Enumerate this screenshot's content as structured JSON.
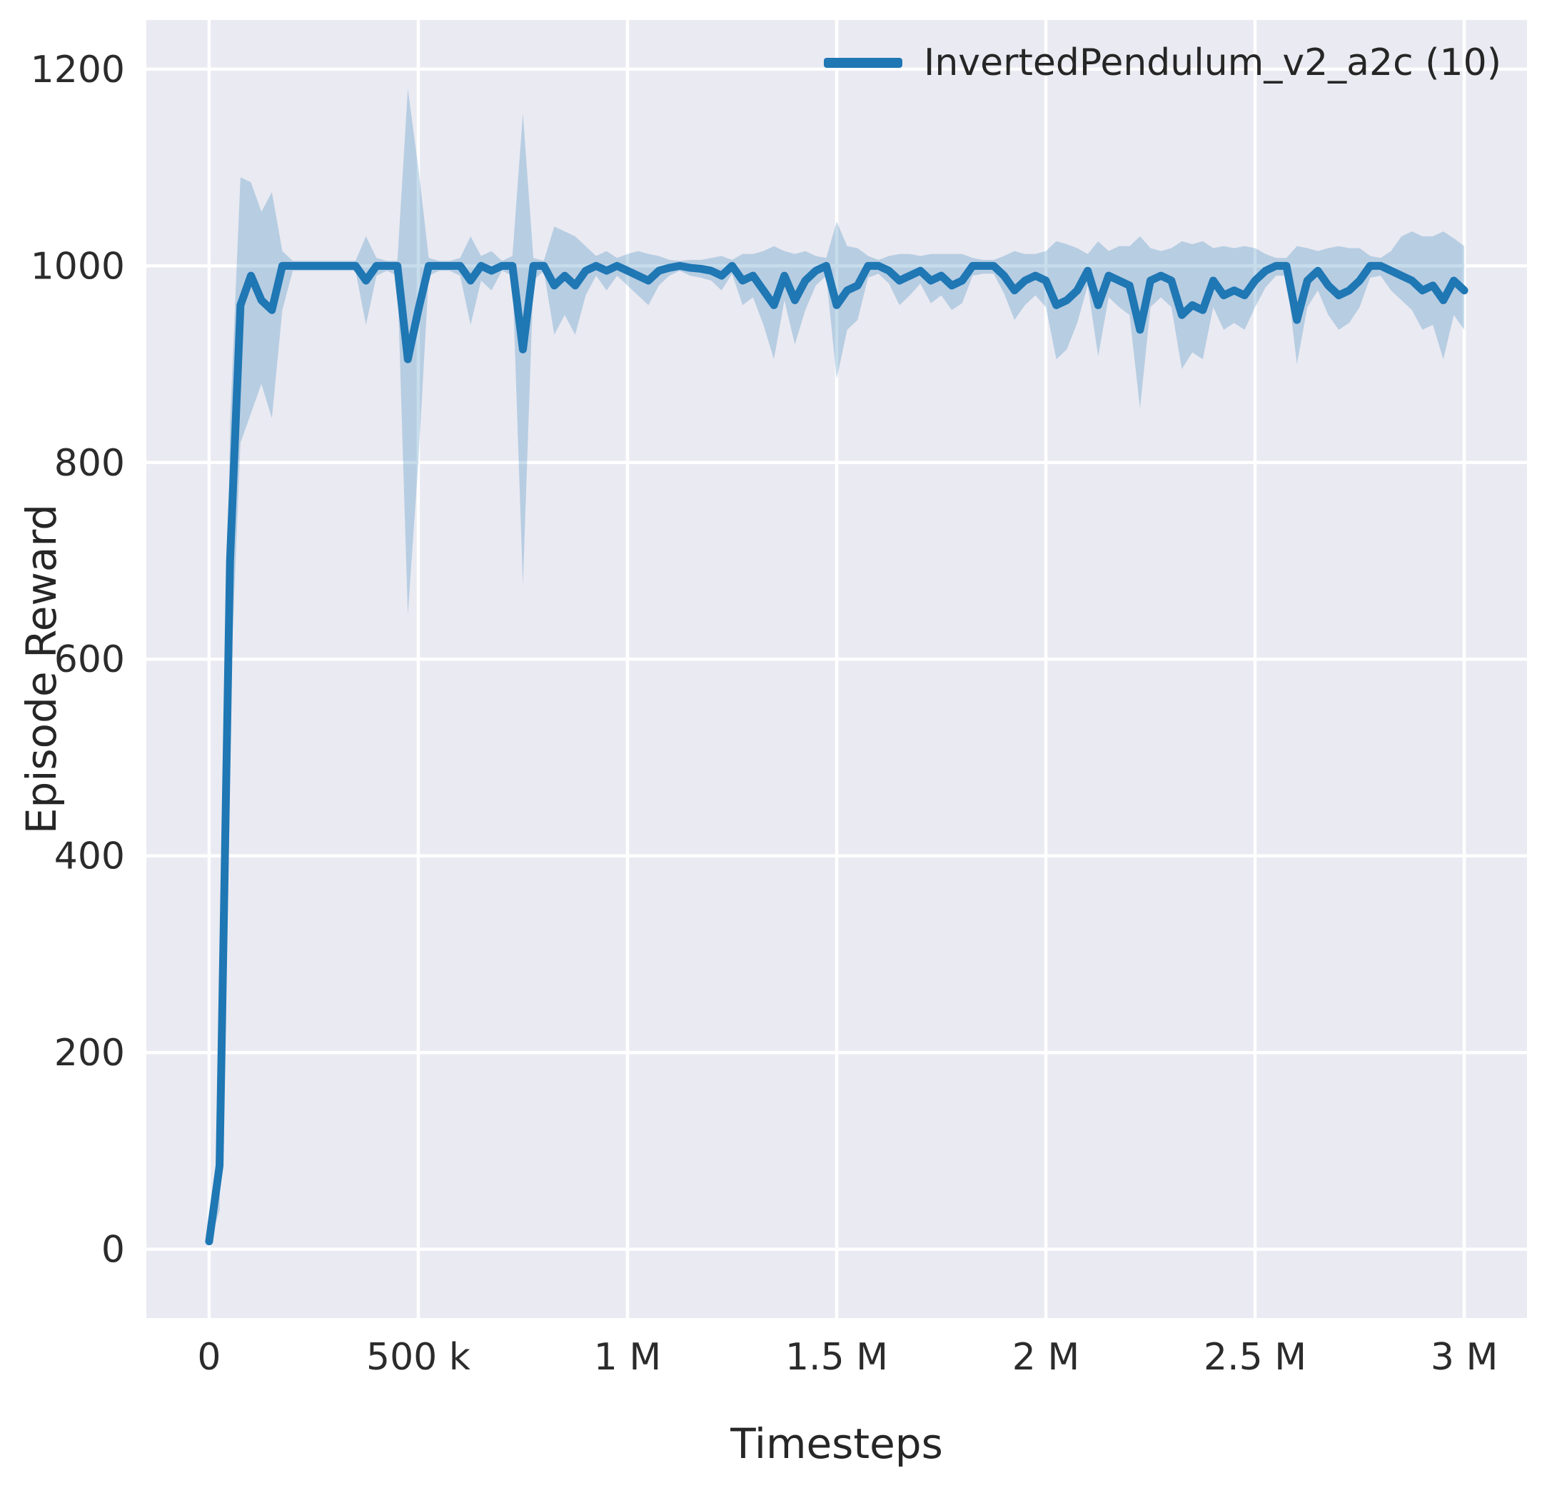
{
  "chart_data": {
    "type": "line",
    "title": "",
    "xlabel": "Timesteps",
    "ylabel": "Episode Reward",
    "grid": true,
    "legend_position": "upper right",
    "plot_background": "#eaeaf2",
    "grid_color": "#ffffff",
    "tick_color": "#2b2b2b",
    "xlim": [
      -150000,
      3150000
    ],
    "ylim": [
      -70,
      1250
    ],
    "x_ticks": [
      {
        "value": 0,
        "label": "0"
      },
      {
        "value": 500000,
        "label": "500 k"
      },
      {
        "value": 1000000,
        "label": "1 M"
      },
      {
        "value": 1500000,
        "label": "1.5 M"
      },
      {
        "value": 2000000,
        "label": "2 M"
      },
      {
        "value": 2500000,
        "label": "2.5 M"
      },
      {
        "value": 3000000,
        "label": "3 M"
      }
    ],
    "y_ticks": [
      {
        "value": 0,
        "label": "0"
      },
      {
        "value": 200,
        "label": "200"
      },
      {
        "value": 400,
        "label": "400"
      },
      {
        "value": 600,
        "label": "600"
      },
      {
        "value": 800,
        "label": "800"
      },
      {
        "value": 1000,
        "label": "1000"
      },
      {
        "value": 1200,
        "label": "1200"
      }
    ],
    "series": [
      {
        "name": "InvertedPendulum_v2_a2c (10)",
        "color": "#1f77b4",
        "band_opacity": 0.25,
        "x_start": 0,
        "x_step": 25000,
        "mean": [
          8,
          85,
          700,
          960,
          990,
          965,
          955,
          1000,
          1000,
          1000,
          1000,
          1000,
          1000,
          1000,
          1000,
          985,
          1000,
          1000,
          1000,
          905,
          955,
          1000,
          1000,
          1000,
          1000,
          985,
          1000,
          995,
          1000,
          1000,
          915,
          1000,
          1000,
          980,
          990,
          980,
          995,
          1000,
          995,
          1000,
          995,
          990,
          985,
          995,
          998,
          1000,
          998,
          997,
          995,
          990,
          1000,
          985,
          990,
          975,
          960,
          990,
          965,
          985,
          995,
          1000,
          960,
          975,
          980,
          1000,
          1000,
          995,
          985,
          990,
          995,
          985,
          990,
          980,
          985,
          1000,
          1000,
          1000,
          990,
          975,
          985,
          990,
          985,
          960,
          965,
          975,
          995,
          960,
          990,
          985,
          980,
          935,
          985,
          990,
          985,
          950,
          960,
          955,
          985,
          970,
          975,
          970,
          985,
          995,
          1000,
          1000,
          945,
          985,
          995,
          980,
          970,
          975,
          985,
          1000,
          1000,
          995,
          990,
          985,
          975,
          980,
          965,
          985,
          975
        ],
        "band_lo": [
          3,
          40,
          560,
          820,
          850,
          880,
          845,
          955,
          995,
          995,
          995,
          995,
          995,
          995,
          995,
          940,
          990,
          995,
          990,
          645,
          800,
          990,
          995,
          995,
          990,
          940,
          985,
          975,
          995,
          990,
          675,
          985,
          995,
          930,
          950,
          930,
          970,
          990,
          975,
          990,
          980,
          970,
          960,
          980,
          990,
          995,
          990,
          988,
          985,
          975,
          992,
          960,
          968,
          940,
          905,
          965,
          920,
          955,
          980,
          990,
          885,
          935,
          945,
          988,
          992,
          982,
          960,
          970,
          982,
          962,
          970,
          955,
          962,
          990,
          992,
          992,
          972,
          945,
          960,
          970,
          958,
          905,
          915,
          942,
          980,
          908,
          968,
          958,
          950,
          855,
          958,
          968,
          958,
          895,
          912,
          905,
          958,
          935,
          942,
          935,
          958,
          978,
          990,
          990,
          900,
          958,
          975,
          950,
          935,
          942,
          958,
          988,
          990,
          975,
          965,
          955,
          935,
          940,
          905,
          950,
          935
        ],
        "band_hi": [
          14,
          130,
          840,
          1090,
          1085,
          1055,
          1075,
          1015,
          1005,
          1005,
          1005,
          1005,
          1005,
          1005,
          1005,
          1030,
          1008,
          1005,
          1005,
          1180,
          1100,
          1008,
          1005,
          1005,
          1008,
          1030,
          1010,
          1015,
          1005,
          1010,
          1155,
          1008,
          1005,
          1040,
          1035,
          1030,
          1020,
          1010,
          1015,
          1008,
          1012,
          1015,
          1012,
          1010,
          1006,
          1005,
          1006,
          1006,
          1008,
          1010,
          1006,
          1012,
          1012,
          1015,
          1020,
          1015,
          1012,
          1015,
          1010,
          1008,
          1045,
          1020,
          1018,
          1010,
          1006,
          1010,
          1012,
          1012,
          1010,
          1012,
          1012,
          1012,
          1012,
          1008,
          1006,
          1006,
          1010,
          1015,
          1012,
          1012,
          1015,
          1025,
          1022,
          1018,
          1012,
          1025,
          1015,
          1020,
          1020,
          1030,
          1018,
          1015,
          1018,
          1025,
          1022,
          1025,
          1018,
          1020,
          1018,
          1020,
          1018,
          1012,
          1008,
          1008,
          1020,
          1018,
          1015,
          1018,
          1020,
          1018,
          1018,
          1010,
          1008,
          1015,
          1030,
          1035,
          1030,
          1030,
          1035,
          1028,
          1020
        ]
      }
    ]
  }
}
